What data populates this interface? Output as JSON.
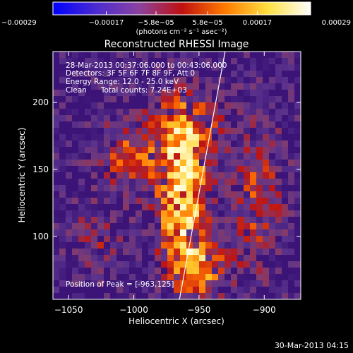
{
  "chart_data": {
    "type": "heatmap",
    "title": "Reconstructed RHESSI Image",
    "xlabel": "Heliocentric X (arcsec)",
    "ylabel": "Heliocentric Y (arcsec)",
    "xlim": [
      -1062,
      -872
    ],
    "ylim": [
      53,
      238
    ],
    "x_ticks": [
      -1050,
      -1000,
      -950,
      -900
    ],
    "x_tick_labels": [
      "−1050",
      "−1000",
      "−950",
      "−900"
    ],
    "y_ticks": [
      100,
      150,
      200
    ],
    "y_tick_labels": [
      "100",
      "150",
      "200"
    ],
    "colorbar": {
      "range": [
        -0.00029,
        0.00029
      ],
      "ticks": [
        -0.00029,
        -0.00017,
        -5.8e-05,
        5.8e-05,
        0.00017,
        0.00029
      ],
      "tick_labels": [
        "−0.00029",
        "−0.00017",
        "−5.8e−05",
        "5.8e−05",
        "0.00017",
        "0.00029"
      ],
      "units_label": "(photons cm⁻² s⁻¹ asec⁻²)",
      "colors": [
        "#0000ff",
        "#4b2bd0",
        "#8a43a0",
        "#c01010",
        "#ff7a00",
        "#ffe040",
        "#ffffff"
      ]
    },
    "limb_line": {
      "x": [
        -965,
        -930
      ],
      "y": [
        53,
        238
      ]
    },
    "annotations": [
      "28-Mar-2013 00:37:06.000 to 00:43:06.000",
      "Detectors: 3F 5F 6F 7F 8F 9F, Att 0",
      "Energy Range: 12.0 - 25.0 keV",
      "Clean      Total counts: 7.24E+03"
    ],
    "peak_label": "Position of Peak = [-963,125]",
    "peak": [
      -963,
      125
    ],
    "sources": [
      {
        "x": -963,
        "y": 125,
        "amp": 1.0,
        "sx": 14,
        "sy": 30
      },
      {
        "x": -960,
        "y": 180,
        "amp": 0.75,
        "sx": 18,
        "sy": 20
      },
      {
        "x": -1005,
        "y": 160,
        "amp": 0.55,
        "sx": 16,
        "sy": 18
      },
      {
        "x": -950,
        "y": 75,
        "amp": 0.7,
        "sx": 16,
        "sy": 16
      },
      {
        "x": -905,
        "y": 130,
        "amp": 0.5,
        "sx": 14,
        "sy": 40
      },
      {
        "x": -1030,
        "y": 100,
        "amp": 0.35,
        "sx": 14,
        "sy": 18
      }
    ]
  },
  "footer": {
    "timestamp": "30-Mar-2013 04:15"
  }
}
